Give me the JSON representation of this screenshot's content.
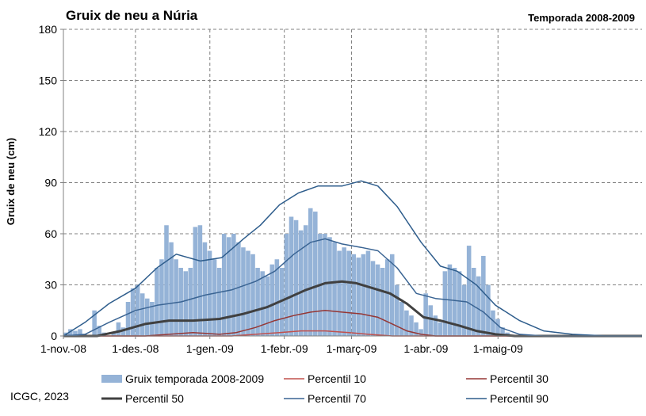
{
  "chart_data": {
    "type": "bar+line",
    "title": "Gruix de neu a Núria",
    "subtitle": "Temporada 2008-2009",
    "ylabel": "Gruix de neu (cm)",
    "xlabel": "",
    "ylim": [
      0,
      180
    ],
    "yticks": [
      0,
      30,
      60,
      90,
      120,
      150,
      180
    ],
    "x_start": "2008-11-01",
    "x_end": "2009-06-30",
    "xticks": [
      {
        "date": "2008-11-01",
        "label": "1-nov.-08"
      },
      {
        "date": "2008-12-01",
        "label": "1-des.-08"
      },
      {
        "date": "2009-01-01",
        "label": "1-gen.-09"
      },
      {
        "date": "2009-02-01",
        "label": "1-febr.-09"
      },
      {
        "date": "2009-03-01",
        "label": "1-març-09"
      },
      {
        "date": "2009-04-01",
        "label": "1-abr.-09"
      },
      {
        "date": "2009-05-01",
        "label": "1-maig-09"
      }
    ],
    "grid": true,
    "legend_position": "bottom",
    "source": "ICGC, 2023",
    "bar_series": {
      "name": "Gruix temporada 2008-2009",
      "color": "#95B3D7",
      "points": [
        [
          "2008-11-01",
          2
        ],
        [
          "2008-11-03",
          4
        ],
        [
          "2008-11-05",
          3
        ],
        [
          "2008-11-07",
          4
        ],
        [
          "2008-11-09",
          1
        ],
        [
          "2008-11-13",
          15
        ],
        [
          "2008-11-15",
          6
        ],
        [
          "2008-11-17",
          2
        ],
        [
          "2008-11-21",
          2
        ],
        [
          "2008-11-23",
          8
        ],
        [
          "2008-11-25",
          5
        ],
        [
          "2008-11-27",
          20
        ],
        [
          "2008-11-29",
          28
        ],
        [
          "2008-12-01",
          30
        ],
        [
          "2008-12-03",
          25
        ],
        [
          "2008-12-05",
          22
        ],
        [
          "2008-12-07",
          20
        ],
        [
          "2008-12-09",
          40
        ],
        [
          "2008-12-11",
          45
        ],
        [
          "2008-12-13",
          65
        ],
        [
          "2008-12-15",
          55
        ],
        [
          "2008-12-17",
          45
        ],
        [
          "2008-12-19",
          40
        ],
        [
          "2008-12-21",
          38
        ],
        [
          "2008-12-23",
          40
        ],
        [
          "2008-12-25",
          64
        ],
        [
          "2008-12-27",
          65
        ],
        [
          "2008-12-29",
          55
        ],
        [
          "2008-12-31",
          50
        ],
        [
          "2009-01-02",
          45
        ],
        [
          "2009-01-04",
          40
        ],
        [
          "2009-01-06",
          60
        ],
        [
          "2009-01-08",
          58
        ],
        [
          "2009-01-10",
          60
        ],
        [
          "2009-01-12",
          55
        ],
        [
          "2009-01-14",
          52
        ],
        [
          "2009-01-16",
          50
        ],
        [
          "2009-01-18",
          48
        ],
        [
          "2009-01-20",
          40
        ],
        [
          "2009-01-22",
          38
        ],
        [
          "2009-01-24",
          35
        ],
        [
          "2009-01-26",
          42
        ],
        [
          "2009-01-28",
          45
        ],
        [
          "2009-01-30",
          40
        ],
        [
          "2009-02-01",
          60
        ],
        [
          "2009-02-03",
          70
        ],
        [
          "2009-02-05",
          68
        ],
        [
          "2009-02-07",
          62
        ],
        [
          "2009-02-09",
          65
        ],
        [
          "2009-02-11",
          75
        ],
        [
          "2009-02-13",
          73
        ],
        [
          "2009-02-15",
          60
        ],
        [
          "2009-02-17",
          60
        ],
        [
          "2009-02-19",
          58
        ],
        [
          "2009-02-21",
          55
        ],
        [
          "2009-02-23",
          50
        ],
        [
          "2009-02-25",
          52
        ],
        [
          "2009-02-27",
          50
        ],
        [
          "2009-03-01",
          48
        ],
        [
          "2009-03-03",
          46
        ],
        [
          "2009-03-05",
          48
        ],
        [
          "2009-03-07",
          50
        ],
        [
          "2009-03-09",
          44
        ],
        [
          "2009-03-11",
          42
        ],
        [
          "2009-03-13",
          40
        ],
        [
          "2009-03-15",
          45
        ],
        [
          "2009-03-17",
          48
        ],
        [
          "2009-03-19",
          30
        ],
        [
          "2009-03-21",
          20
        ],
        [
          "2009-03-23",
          15
        ],
        [
          "2009-03-25",
          12
        ],
        [
          "2009-03-27",
          8
        ],
        [
          "2009-03-29",
          4
        ],
        [
          "2009-03-31",
          25
        ],
        [
          "2009-04-02",
          18
        ],
        [
          "2009-04-04",
          12
        ],
        [
          "2009-04-06",
          8
        ],
        [
          "2009-04-08",
          38
        ],
        [
          "2009-04-10",
          42
        ],
        [
          "2009-04-12",
          40
        ],
        [
          "2009-04-14",
          38
        ],
        [
          "2009-04-16",
          30
        ],
        [
          "2009-04-18",
          53
        ],
        [
          "2009-04-20",
          40
        ],
        [
          "2009-04-22",
          35
        ],
        [
          "2009-04-24",
          47
        ],
        [
          "2009-04-26",
          30
        ],
        [
          "2009-04-28",
          15
        ],
        [
          "2009-04-30",
          10
        ],
        [
          "2009-05-02",
          5
        ],
        [
          "2009-05-04",
          2
        ]
      ]
    },
    "series": [
      {
        "name": "Percentil 10",
        "color": "#C0504D",
        "width": 1.5,
        "points": [
          [
            "2008-11-01",
            0
          ],
          [
            "2009-01-10",
            0
          ],
          [
            "2009-01-20",
            1
          ],
          [
            "2009-01-30",
            2
          ],
          [
            "2009-02-08",
            3
          ],
          [
            "2009-02-18",
            3
          ],
          [
            "2009-02-28",
            2
          ],
          [
            "2009-03-08",
            1
          ],
          [
            "2009-03-18",
            0
          ],
          [
            "2009-06-30",
            0
          ]
        ]
      },
      {
        "name": "Percentil 30",
        "color": "#953735",
        "width": 1.5,
        "points": [
          [
            "2008-11-01",
            0
          ],
          [
            "2008-12-05",
            0
          ],
          [
            "2008-12-15",
            1
          ],
          [
            "2008-12-25",
            2
          ],
          [
            "2009-01-05",
            1
          ],
          [
            "2009-01-12",
            2
          ],
          [
            "2009-01-20",
            5
          ],
          [
            "2009-01-28",
            9
          ],
          [
            "2009-02-05",
            12
          ],
          [
            "2009-02-12",
            14
          ],
          [
            "2009-02-18",
            15
          ],
          [
            "2009-02-25",
            14
          ],
          [
            "2009-03-05",
            13
          ],
          [
            "2009-03-12",
            11
          ],
          [
            "2009-03-18",
            7
          ],
          [
            "2009-03-24",
            3
          ],
          [
            "2009-03-30",
            1
          ],
          [
            "2009-04-05",
            0
          ],
          [
            "2009-06-30",
            0
          ]
        ]
      },
      {
        "name": "Percentil 50",
        "color": "#404040",
        "width": 3,
        "points": [
          [
            "2008-11-01",
            0
          ],
          [
            "2008-11-15",
            0
          ],
          [
            "2008-11-25",
            3
          ],
          [
            "2008-12-05",
            7
          ],
          [
            "2008-12-15",
            9
          ],
          [
            "2008-12-25",
            9
          ],
          [
            "2009-01-05",
            10
          ],
          [
            "2009-01-15",
            13
          ],
          [
            "2009-01-25",
            17
          ],
          [
            "2009-02-02",
            22
          ],
          [
            "2009-02-10",
            27
          ],
          [
            "2009-02-18",
            31
          ],
          [
            "2009-02-25",
            32
          ],
          [
            "2009-03-03",
            31
          ],
          [
            "2009-03-10",
            28
          ],
          [
            "2009-03-17",
            25
          ],
          [
            "2009-03-24",
            19
          ],
          [
            "2009-03-31",
            11
          ],
          [
            "2009-04-07",
            9
          ],
          [
            "2009-04-15",
            6
          ],
          [
            "2009-04-22",
            3
          ],
          [
            "2009-04-30",
            1
          ],
          [
            "2009-05-08",
            0
          ],
          [
            "2009-06-30",
            0
          ]
        ]
      },
      {
        "name": "Percentil 70",
        "color": "#3A6493",
        "width": 1.5,
        "points": [
          [
            "2008-11-01",
            0
          ],
          [
            "2008-11-10",
            1
          ],
          [
            "2008-11-20",
            8
          ],
          [
            "2008-12-01",
            15
          ],
          [
            "2008-12-10",
            18
          ],
          [
            "2008-12-20",
            20
          ],
          [
            "2008-12-30",
            24
          ],
          [
            "2009-01-10",
            27
          ],
          [
            "2009-01-20",
            32
          ],
          [
            "2009-01-28",
            38
          ],
          [
            "2009-02-05",
            48
          ],
          [
            "2009-02-12",
            55
          ],
          [
            "2009-02-18",
            57
          ],
          [
            "2009-02-25",
            54
          ],
          [
            "2009-03-05",
            52
          ],
          [
            "2009-03-12",
            50
          ],
          [
            "2009-03-20",
            40
          ],
          [
            "2009-03-28",
            25
          ],
          [
            "2009-04-05",
            22
          ],
          [
            "2009-04-12",
            21
          ],
          [
            "2009-04-18",
            20
          ],
          [
            "2009-04-25",
            14
          ],
          [
            "2009-05-02",
            5
          ],
          [
            "2009-05-10",
            1
          ],
          [
            "2009-05-20",
            0
          ],
          [
            "2009-06-30",
            0
          ]
        ]
      },
      {
        "name": "Percentil 90",
        "color": "#2E5D8C",
        "width": 1.5,
        "points": [
          [
            "2008-11-01",
            0
          ],
          [
            "2008-11-10",
            8
          ],
          [
            "2008-11-20",
            19
          ],
          [
            "2008-12-01",
            28
          ],
          [
            "2008-12-10",
            40
          ],
          [
            "2008-12-18",
            48
          ],
          [
            "2008-12-28",
            44
          ],
          [
            "2009-01-06",
            46
          ],
          [
            "2009-01-15",
            57
          ],
          [
            "2009-01-22",
            65
          ],
          [
            "2009-01-30",
            77
          ],
          [
            "2009-02-07",
            84
          ],
          [
            "2009-02-15",
            88
          ],
          [
            "2009-02-25",
            88
          ],
          [
            "2009-03-05",
            91
          ],
          [
            "2009-03-12",
            88
          ],
          [
            "2009-03-20",
            76
          ],
          [
            "2009-03-30",
            55
          ],
          [
            "2009-04-07",
            41
          ],
          [
            "2009-04-14",
            38
          ],
          [
            "2009-04-22",
            30
          ],
          [
            "2009-04-30",
            18
          ],
          [
            "2009-05-10",
            9
          ],
          [
            "2009-05-20",
            3
          ],
          [
            "2009-06-01",
            1
          ],
          [
            "2009-06-15",
            0
          ],
          [
            "2009-06-30",
            0
          ]
        ]
      }
    ],
    "legend_order": [
      "Gruix temporada 2008-2009",
      "Percentil 10",
      "Percentil 30",
      "Percentil 50",
      "Percentil 70",
      "Percentil 90"
    ]
  }
}
